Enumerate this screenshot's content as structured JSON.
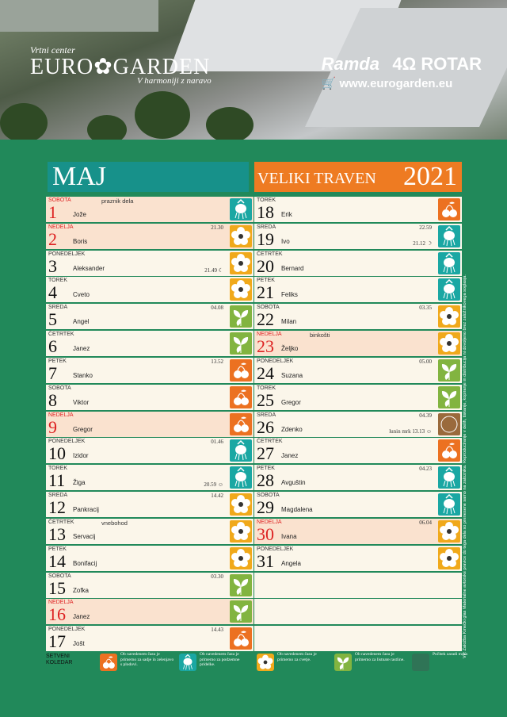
{
  "header": {
    "brand_small": "Vrtni center",
    "brand_name": "EURO✿GARDEN",
    "brand_tagline": "V harmoniji z naravo",
    "sponsor_ramda": "Ramda",
    "sponsor_rotar": "4Ω ROTAR",
    "website": "🛒 www.eurogarden.eu"
  },
  "month": {
    "name": "MAJ",
    "alt_name": "VELIKI TRAVEN",
    "year": "2021"
  },
  "days_left": [
    {
      "weekday": "SOBOTA",
      "num": "1",
      "name": "Jože",
      "note": "praznik dela",
      "time": "",
      "time2": "",
      "holiday": true,
      "icon": "root"
    },
    {
      "weekday": "NEDELJA",
      "num": "2",
      "name": "Boris",
      "note": "",
      "time": "21.30",
      "time2": "",
      "holiday": true,
      "icon": "flower"
    },
    {
      "weekday": "PONEDELJEK",
      "num": "3",
      "name": "Aleksander",
      "note": "",
      "time": "",
      "time2": "21.49 ☾",
      "holiday": false,
      "icon": "flower"
    },
    {
      "weekday": "TOREK",
      "num": "4",
      "name": "Cveto",
      "note": "",
      "time": "",
      "time2": "",
      "holiday": false,
      "icon": "flower"
    },
    {
      "weekday": "SREDA",
      "num": "5",
      "name": "Angel",
      "note": "",
      "time": "04.08",
      "time2": "",
      "holiday": false,
      "icon": "leaf"
    },
    {
      "weekday": "ČETRTEK",
      "num": "6",
      "name": "Janez",
      "note": "",
      "time": "",
      "time2": "",
      "holiday": false,
      "icon": "leaf"
    },
    {
      "weekday": "PETEK",
      "num": "7",
      "name": "Stanko",
      "note": "",
      "time": "13.52",
      "time2": "",
      "holiday": false,
      "icon": "fruit"
    },
    {
      "weekday": "SOBOTA",
      "num": "8",
      "name": "Viktor",
      "note": "",
      "time": "",
      "time2": "",
      "holiday": false,
      "icon": "fruit"
    },
    {
      "weekday": "NEDELJA",
      "num": "9",
      "name": "Gregor",
      "note": "",
      "time": "",
      "time2": "",
      "holiday": true,
      "icon": "fruit"
    },
    {
      "weekday": "PONEDELJEK",
      "num": "10",
      "name": "Izidor",
      "note": "",
      "time": "01.46",
      "time2": "",
      "holiday": false,
      "icon": "root"
    },
    {
      "weekday": "TOREK",
      "num": "11",
      "name": "Žiga",
      "note": "",
      "time": "",
      "time2": "20.59 ☺",
      "holiday": false,
      "icon": "root"
    },
    {
      "weekday": "SREDA",
      "num": "12",
      "name": "Pankracij",
      "note": "",
      "time": "14.42",
      "time2": "",
      "holiday": false,
      "icon": "flower"
    },
    {
      "weekday": "ČETRTEK",
      "num": "13",
      "name": "Servacij",
      "note": "vnebohod",
      "time": "",
      "time2": "",
      "holiday": false,
      "icon": "flower"
    },
    {
      "weekday": "PETEK",
      "num": "14",
      "name": "Bonifacij",
      "note": "",
      "time": "",
      "time2": "",
      "holiday": false,
      "icon": "flower"
    },
    {
      "weekday": "SOBOTA",
      "num": "15",
      "name": "Zofka",
      "note": "",
      "time": "03.30",
      "time2": "",
      "holiday": false,
      "icon": "leaf"
    },
    {
      "weekday": "NEDELJA",
      "num": "16",
      "name": "Janez",
      "note": "",
      "time": "",
      "time2": "",
      "holiday": true,
      "icon": "leaf"
    },
    {
      "weekday": "PONEDELJEK",
      "num": "17",
      "name": "Jošt",
      "note": "",
      "time": "14.43",
      "time2": "",
      "holiday": false,
      "icon": "fruit"
    }
  ],
  "days_right": [
    {
      "weekday": "TOREK",
      "num": "18",
      "name": "Erik",
      "note": "",
      "time": "",
      "time2": "",
      "holiday": false,
      "icon": "fruit"
    },
    {
      "weekday": "SREDA",
      "num": "19",
      "name": "Ivo",
      "note": "",
      "time": "22.59",
      "time2": "21.12 ☽",
      "holiday": false,
      "icon": "root"
    },
    {
      "weekday": "ČETRTEK",
      "num": "20",
      "name": "Bernard",
      "note": "",
      "time": "",
      "time2": "",
      "holiday": false,
      "icon": "root"
    },
    {
      "weekday": "PETEK",
      "num": "21",
      "name": "Feliks",
      "note": "",
      "time": "",
      "time2": "",
      "holiday": false,
      "icon": "root"
    },
    {
      "weekday": "SOBOTA",
      "num": "22",
      "name": "Milan",
      "note": "",
      "time": "03.35",
      "time2": "",
      "holiday": false,
      "icon": "flower"
    },
    {
      "weekday": "NEDELJA",
      "num": "23",
      "name": "Željko",
      "note": "binkošti",
      "time": "",
      "time2": "",
      "holiday": true,
      "icon": "flower"
    },
    {
      "weekday": "PONEDELJEK",
      "num": "24",
      "name": "Suzana",
      "note": "",
      "time": "05.00",
      "time2": "",
      "holiday": false,
      "icon": "leaf"
    },
    {
      "weekday": "TOREK",
      "num": "25",
      "name": "Gregor",
      "note": "",
      "time": "",
      "time2": "",
      "holiday": false,
      "icon": "leaf"
    },
    {
      "weekday": "SREDA",
      "num": "26",
      "name": "Zdenko",
      "note": "",
      "time": "04.39",
      "time2": "lunin mrk 13.13 ☺",
      "holiday": false,
      "icon": "brown"
    },
    {
      "weekday": "ČETRTEK",
      "num": "27",
      "name": "Janez",
      "note": "",
      "time": "",
      "time2": "",
      "holiday": false,
      "icon": "fruit"
    },
    {
      "weekday": "PETEK",
      "num": "28",
      "name": "Avguštin",
      "note": "",
      "time": "04.23",
      "time2": "",
      "holiday": false,
      "icon": "root"
    },
    {
      "weekday": "SOBOTA",
      "num": "29",
      "name": "Magdalena",
      "note": "",
      "time": "",
      "time2": "",
      "holiday": false,
      "icon": "root"
    },
    {
      "weekday": "NEDELJA",
      "num": "30",
      "name": "Ivana",
      "note": "",
      "time": "06.04",
      "time2": "",
      "holiday": true,
      "icon": "flower"
    },
    {
      "weekday": "PONEDELJEK",
      "num": "31",
      "name": "Angela",
      "note": "",
      "time": "",
      "time2": "",
      "holiday": false,
      "icon": "flower"
    },
    {
      "weekday": "",
      "num": "",
      "name": "",
      "note": "",
      "time": "",
      "time2": "",
      "holiday": false,
      "icon": "none"
    },
    {
      "weekday": "",
      "num": "",
      "name": "",
      "note": "",
      "time": "",
      "time2": "",
      "holiday": false,
      "icon": "none"
    },
    {
      "weekday": "",
      "num": "",
      "name": "",
      "note": "",
      "time": "",
      "time2": "",
      "holiday": false,
      "icon": "none"
    }
  ],
  "legend": {
    "title": "SETVENI KOLEDAR",
    "items": [
      {
        "icon": "fruit",
        "text": "Ob navedenem času je primerno za sadje in zelenjavo s plodovi."
      },
      {
        "icon": "root",
        "text": "Ob navedenem času je primerno za podzemne pridelke."
      },
      {
        "icon": "flower",
        "text": "Ob navedenem času je primerno za cvetje."
      },
      {
        "icon": "leaf",
        "text": "Ob navedenem času je primerno za listnate rastline."
      },
      {
        "icon": "dark",
        "text": "Počitek zaradi mrka"
      }
    ]
  },
  "side_note": "Vir: Založba Kmečki glas    Materialne avtorske pravice do tega dela so prenesene samo na zaloznika. Reproduciranje v delih, tiskanje, kopiranje in distribucija ni dovoljeno brez založnikovega soglasja.",
  "colors": {
    "background": "#21895a",
    "root": "#1aa7a3",
    "fruit": "#ec7121",
    "flower": "#f0a91b",
    "leaf": "#82b440",
    "holiday": "#fae2cf",
    "red": "#dd2222"
  }
}
